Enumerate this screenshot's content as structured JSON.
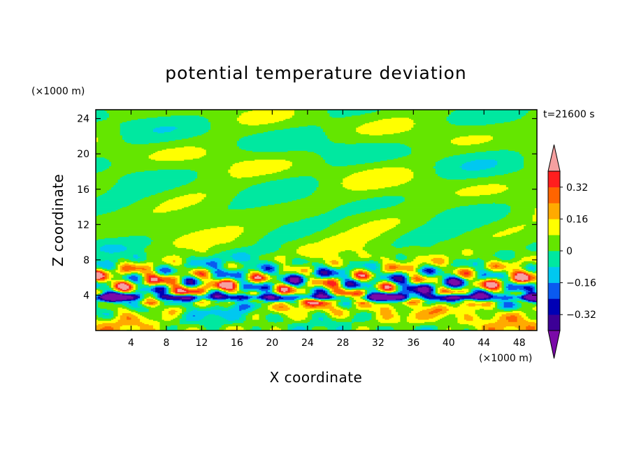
{
  "chart_data": {
    "type": "heatmap",
    "title": "potential temperature deviation",
    "xlabel": "X coordinate",
    "ylabel": "Z coordinate",
    "x_unit": "(×1000 m)",
    "y_unit": "(×1000 m)",
    "time_label": "t=21600 s",
    "xlim": [
      0,
      50
    ],
    "ylim": [
      0,
      25
    ],
    "x_ticks": [
      4,
      8,
      12,
      16,
      20,
      24,
      28,
      32,
      36,
      40,
      44,
      48
    ],
    "y_ticks": [
      4,
      8,
      12,
      16,
      20,
      24
    ],
    "colorbar": {
      "levels": [
        -0.4,
        -0.32,
        -0.24,
        -0.16,
        -0.08,
        0,
        0.08,
        0.16,
        0.24,
        0.32,
        0.4
      ],
      "labeled_levels": [
        0.32,
        0.16,
        0,
        -0.16,
        -0.32
      ],
      "labels": [
        "0.32",
        "0.16",
        "0",
        "−0.16",
        "−0.32"
      ],
      "colors": [
        "#7a0aa8",
        "#3c0096",
        "#0000b4",
        "#0a5af0",
        "#00c8f0",
        "#00e8a0",
        "#64e600",
        "#ffff00",
        "#ffaa00",
        "#ff6400",
        "#ff1e1e",
        "#f5a0a0"
      ]
    }
  }
}
